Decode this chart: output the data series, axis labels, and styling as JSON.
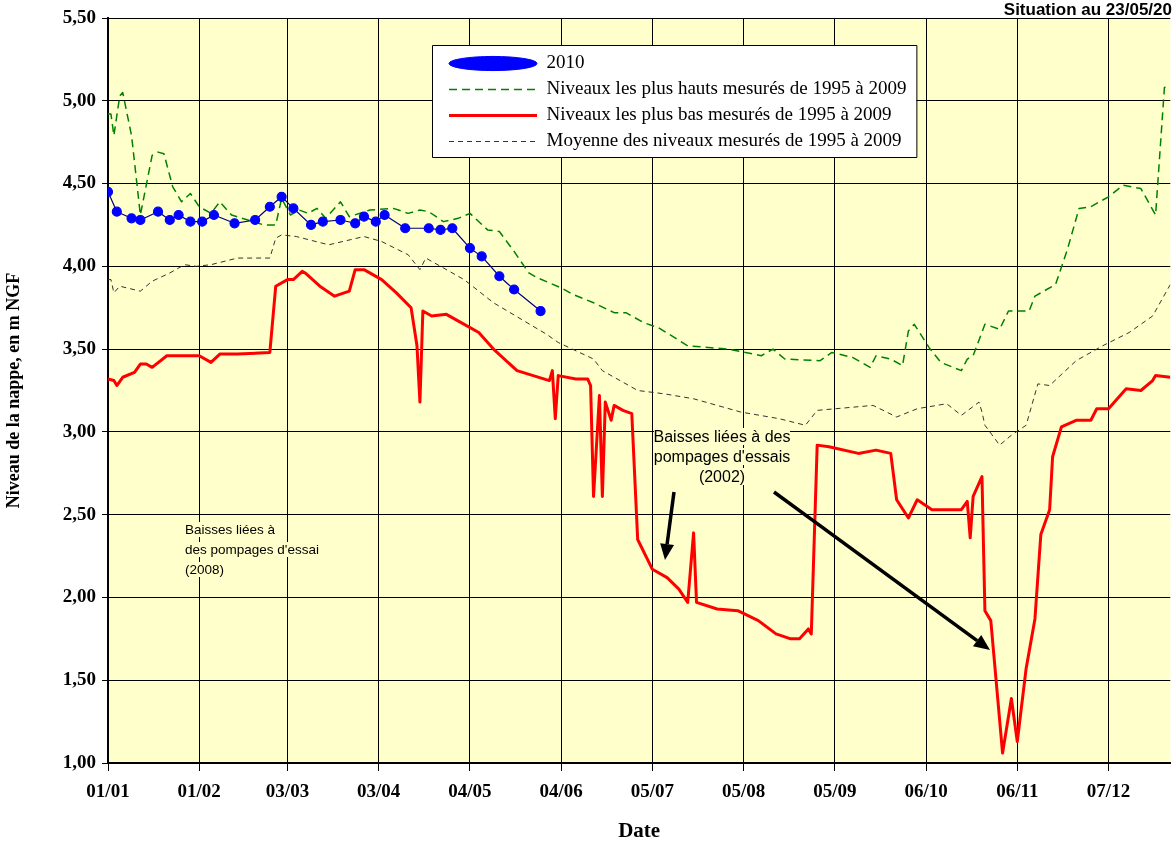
{
  "chart_data": {
    "type": "line",
    "title": "Situation au 23/05/20",
    "xlabel": "Date",
    "ylabel": "Niveau de la nappe, en m NGF",
    "xlim": [
      "--01-01",
      "--12-28"
    ],
    "ylim": [
      1,
      5.5
    ],
    "xticks": [
      {
        "value": "--01-01",
        "label": "01/01"
      },
      {
        "value": "--02-01",
        "label": "01/02"
      },
      {
        "value": "--03-03",
        "label": "03/03"
      },
      {
        "value": "--04-03",
        "label": "03/04"
      },
      {
        "value": "--05-04",
        "label": "04/05"
      },
      {
        "value": "--06-04",
        "label": "04/06"
      },
      {
        "value": "--07-05",
        "label": "05/07"
      },
      {
        "value": "--08-05",
        "label": "05/08"
      },
      {
        "value": "--09-05",
        "label": "05/09"
      },
      {
        "value": "--10-06",
        "label": "06/10"
      },
      {
        "value": "--11-06",
        "label": "06/11"
      },
      {
        "value": "--12-07",
        "label": "07/12"
      }
    ],
    "yticks": [
      {
        "value": 1,
        "label": "1,00"
      },
      {
        "value": 1.5,
        "label": "1,50"
      },
      {
        "value": 2,
        "label": "2,00"
      },
      {
        "value": 2.5,
        "label": "2,50"
      },
      {
        "value": 3,
        "label": "3,00"
      },
      {
        "value": 3.5,
        "label": "3,50"
      },
      {
        "value": 4,
        "label": "4,00"
      },
      {
        "value": 4.5,
        "label": "4,50"
      },
      {
        "value": 5,
        "label": "5,00"
      },
      {
        "value": 5.5,
        "label": "5,50"
      }
    ],
    "grid": true,
    "legend": "top",
    "series": [
      {
        "name": "2010",
        "color": "#0000ff",
        "marker": "circle",
        "line_style": "solid",
        "x": [
          "--01-01",
          "--01-04",
          "--01-09",
          "--01-12",
          "--01-18",
          "--01-22",
          "--01-25",
          "--01-29",
          "--02-02",
          "--02-06",
          "--02-13",
          "--02-20",
          "--02-25",
          "--03-01",
          "--03-05",
          "--03-11",
          "--03-15",
          "--03-21",
          "--03-26",
          "--03-29",
          "--04-02",
          "--04-05",
          "--04-12",
          "--04-20",
          "--04-24",
          "--04-28",
          "--05-04",
          "--05-08",
          "--05-14",
          "--05-19",
          "--05-28"
        ],
        "values": [
          4.45,
          4.33,
          4.29,
          4.28,
          4.33,
          4.28,
          4.31,
          4.27,
          4.27,
          4.31,
          4.26,
          4.28,
          4.36,
          4.42,
          4.35,
          4.25,
          4.27,
          4.28,
          4.26,
          4.3,
          4.27,
          4.31,
          4.23,
          4.23,
          4.22,
          4.23,
          4.11,
          4.06,
          3.94,
          3.86,
          3.73
        ]
      },
      {
        "name": "Niveaux les plus hauts mesurés de 1995 à 2009",
        "color": "#008000",
        "marker": "none",
        "line_style": "dashed",
        "x": [
          "--01-01",
          "--01-02",
          "--01-03",
          "--01-05",
          "--01-06",
          "--01-09",
          "--01-12",
          "--01-16",
          "--01-18",
          "--01-20",
          "--01-23",
          "--01-26",
          "--01-29",
          "--02-01",
          "--02-05",
          "--02-08",
          "--02-12",
          "--02-23",
          "--02-27",
          "--03-01",
          "--03-04",
          "--03-07",
          "--03-10",
          "--03-13",
          "--03-16",
          "--03-21",
          "--03-24",
          "--03-31",
          "--04-08",
          "--04-13",
          "--04-17",
          "--04-20",
          "--04-25",
          "--04-30",
          "--05-04",
          "--05-10",
          "--05-14",
          "--05-19",
          "--05-24",
          "--05-27",
          "--06-04",
          "--06-08",
          "--06-15",
          "--06-22",
          "--06-26",
          "--07-02",
          "--07-07",
          "--07-17",
          "--07-24",
          "--07-31",
          "--08-11",
          "--08-15",
          "--08-19",
          "--08-31",
          "--09-04",
          "--09-11",
          "--09-17",
          "--09-19",
          "--09-24",
          "--09-28",
          "--09-30",
          "--10-02",
          "--10-07",
          "--10-11",
          "--10-18",
          "--10-20",
          "--10-22",
          "--10-26",
          "--10-31",
          "--11-03",
          "--11-10",
          "--11-12",
          "--11-19",
          "--11-23",
          "--11-27",
          "--12-01",
          "--12-07",
          "--12-12",
          "--12-18",
          "--12-23",
          "--12-26",
          "--12-28"
        ],
        "values": [
          4.92,
          4.92,
          4.79,
          5.03,
          5.05,
          4.79,
          4.31,
          4.67,
          4.69,
          4.68,
          4.48,
          4.39,
          4.44,
          4.36,
          4.32,
          4.39,
          4.31,
          4.25,
          4.25,
          4.41,
          4.31,
          4.34,
          4.32,
          4.35,
          4.29,
          4.39,
          4.3,
          4.34,
          4.35,
          4.32,
          4.34,
          4.33,
          4.27,
          4.29,
          4.32,
          4.22,
          4.21,
          4.09,
          3.96,
          3.93,
          3.87,
          3.83,
          3.78,
          3.72,
          3.72,
          3.66,
          3.63,
          3.52,
          3.51,
          3.5,
          3.46,
          3.5,
          3.44,
          3.43,
          3.48,
          3.45,
          3.39,
          3.46,
          3.44,
          3.4,
          3.61,
          3.65,
          3.51,
          3.42,
          3.37,
          3.44,
          3.46,
          3.65,
          3.62,
          3.73,
          3.73,
          3.82,
          3.89,
          4.1,
          4.35,
          4.36,
          4.42,
          4.49,
          4.47,
          4.31,
          5.08,
          5.09
        ]
      },
      {
        "name": "Niveaux les plus bas mesurés de 1995 à 2009",
        "color": "#ff0000",
        "marker": "none",
        "line_style": "solid",
        "x": [
          "--01-01",
          "--01-03",
          "--01-04",
          "--01-06",
          "--01-10",
          "--01-12",
          "--01-14",
          "--01-16",
          "--01-21",
          "--02-01",
          "--02-05",
          "--02-08",
          "--02-14",
          "--02-25",
          "--02-27",
          "--03-03",
          "--03-05",
          "--03-08",
          "--03-09",
          "--03-14",
          "--03-19",
          "--03-24",
          "--03-26",
          "--03-29",
          "--04-04",
          "--04-09",
          "--04-14",
          "--04-16",
          "--04-17",
          "--04-18",
          "--04-21",
          "--04-26",
          "--05-01",
          "--05-07",
          "--05-12",
          "--05-20",
          "--05-31",
          "--06-01",
          "--06-02",
          "--06-03",
          "--06-09",
          "--06-13",
          "--06-14",
          "--06-15",
          "--06-17",
          "--06-18",
          "--06-19",
          "--06-21",
          "--06-22",
          "--06-25",
          "--06-28",
          "--06-30",
          "--07-05",
          "--07-10",
          "--07-14",
          "--07-17",
          "--07-19",
          "--07-20",
          "--07-27",
          "--08-03",
          "--08-10",
          "--08-16",
          "--08-21",
          "--08-24",
          "--08-27",
          "--08-28",
          "--08-30",
          "--09-03",
          "--09-13",
          "--09-19",
          "--09-24",
          "--09-26",
          "--09-30",
          "--10-03",
          "--10-08",
          "--10-18",
          "--10-20",
          "--10-21",
          "--10-22",
          "--10-25",
          "--10-26",
          "--10-28",
          "--11-01",
          "--11-04",
          "--11-06",
          "--11-09",
          "--11-12",
          "--11-14",
          "--11-17",
          "--11-18",
          "--11-21",
          "--11-26",
          "--12-01",
          "--12-03",
          "--12-07",
          "--12-13",
          "--12-18",
          "--12-22",
          "--12-23",
          "--12-28"
        ],
        "values": [
          3.32,
          3.31,
          3.28,
          3.33,
          3.36,
          3.41,
          3.41,
          3.39,
          3.46,
          3.46,
          3.42,
          3.47,
          3.47,
          3.48,
          3.88,
          3.92,
          3.92,
          3.97,
          3.96,
          3.88,
          3.82,
          3.85,
          3.98,
          3.98,
          3.92,
          3.84,
          3.75,
          3.52,
          3.18,
          3.73,
          3.7,
          3.71,
          3.66,
          3.6,
          3.5,
          3.37,
          3.31,
          3.37,
          3.08,
          3.34,
          3.32,
          3.32,
          3.28,
          2.61,
          3.22,
          2.61,
          3.18,
          3.07,
          3.16,
          3.13,
          3.11,
          2.35,
          2.17,
          2.12,
          2.05,
          1.97,
          2.39,
          1.97,
          1.93,
          1.92,
          1.86,
          1.78,
          1.75,
          1.75,
          1.81,
          1.78,
          2.92,
          2.91,
          2.87,
          2.89,
          2.87,
          2.59,
          2.48,
          2.59,
          2.53,
          2.53,
          2.58,
          2.36,
          2.61,
          2.73,
          1.92,
          1.86,
          1.06,
          1.39,
          1.13,
          1.57,
          1.87,
          2.38,
          2.53,
          2.85,
          3.03,
          3.07,
          3.07,
          3.14,
          3.14,
          3.26,
          3.25,
          3.31,
          3.34,
          3.33
        ]
      },
      {
        "name": "Moyenne des niveaux mesurés de 1995 à 2009",
        "color": "#333333",
        "marker": "none",
        "line_style": "dashed",
        "x": [
          "--01-01",
          "--01-02",
          "--01-03",
          "--01-05",
          "--01-12",
          "--01-16",
          "--01-22",
          "--01-27",
          "--01-31",
          "--02-05",
          "--02-14",
          "--02-25",
          "--02-27",
          "--03-01",
          "--03-06",
          "--03-17",
          "--03-29",
          "--04-04",
          "--04-13",
          "--04-17",
          "--04-19",
          "--05-02",
          "--05-12",
          "--05-30",
          "--06-03",
          "--06-15",
          "--06-18",
          "--06-30",
          "--07-09",
          "--07-19",
          "--08-04",
          "--08-17",
          "--08-26",
          "--08-30",
          "--09-18",
          "--09-26",
          "--10-03",
          "--10-13",
          "--10-18",
          "--10-24",
          "--10-25",
          "--10-26",
          "--10-31",
          "--11-04",
          "--11-09",
          "--11-13",
          "--11-17",
          "--11-26",
          "--12-05",
          "--12-14",
          "--12-22",
          "--12-28"
        ],
        "values": [
          3.92,
          3.92,
          3.84,
          3.88,
          3.85,
          3.91,
          3.96,
          4.01,
          4,
          4.01,
          4.05,
          4.05,
          4.17,
          4.19,
          4.18,
          4.13,
          4.18,
          4.15,
          4.07,
          3.98,
          4.05,
          3.92,
          3.78,
          3.59,
          3.54,
          3.44,
          3.37,
          3.25,
          3.23,
          3.2,
          3.12,
          3.08,
          3.04,
          3.13,
          3.16,
          3.09,
          3.14,
          3.17,
          3.1,
          3.18,
          3.12,
          3.04,
          2.92,
          2.98,
          3.04,
          3.29,
          3.28,
          3.43,
          3.52,
          3.6,
          3.7,
          3.89
        ]
      }
    ],
    "annotations": [
      "Baisses liées à\ndes pompages d'essai\n(2008)",
      "Baisses liées à des\npompages d'essais\n(2002)"
    ]
  }
}
